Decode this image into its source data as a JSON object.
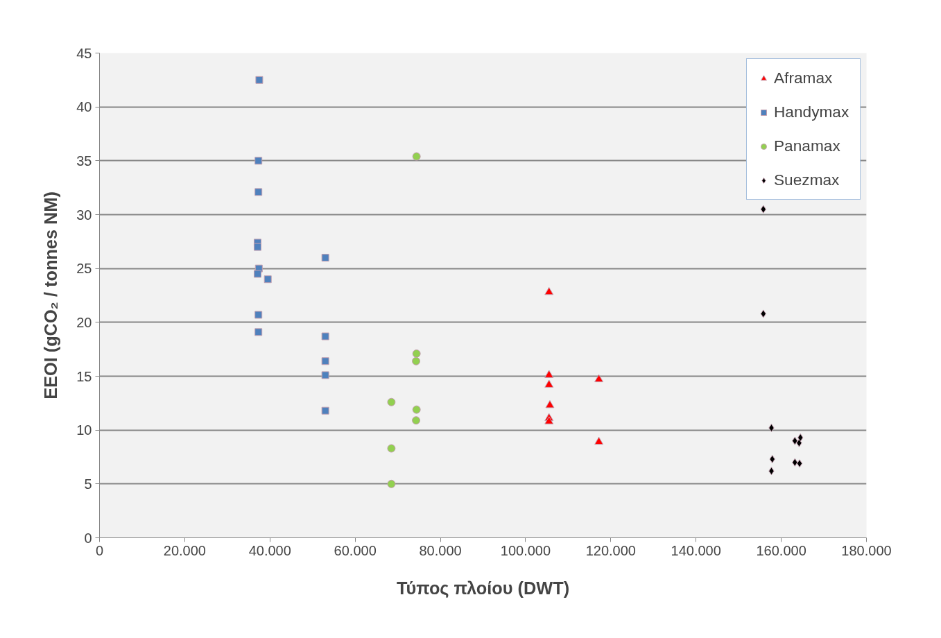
{
  "chart_data": {
    "type": "scatter",
    "xlabel": "Τύπος πλοίου (DWT)",
    "ylabel": "EEOI (gCO₂ / tonnes NM)",
    "xlim": [
      0,
      180000
    ],
    "ylim": [
      0,
      45
    ],
    "xticks": [
      0,
      {
        "value": 20000,
        "label": "20.000"
      },
      {
        "value": 40000,
        "label": "40.000"
      },
      {
        "value": 60000,
        "label": "60.000"
      },
      {
        "value": 80000,
        "label": "80.000"
      },
      {
        "value": 100000,
        "label": "100.000"
      },
      {
        "value": 120000,
        "label": "120.000"
      },
      {
        "value": 140000,
        "label": "140.000"
      },
      {
        "value": 160000,
        "label": "160.000"
      },
      {
        "value": 180000,
        "label": "180.000"
      }
    ],
    "yticks": [
      0,
      5,
      10,
      15,
      20,
      25,
      30,
      35,
      40,
      45
    ],
    "grid": "y",
    "legend": "top right",
    "series": [
      {
        "name": "Aframax",
        "color": "#ff0000",
        "marker": "triangle",
        "x": [
          105500,
          105500,
          105500,
          105700,
          105500,
          105500,
          117200,
          117200
        ],
        "values": [
          22.8,
          15.1,
          14.2,
          12.3,
          11.1,
          10.8,
          14.7,
          8.9
        ]
      },
      {
        "name": "Handymax",
        "color": "#4f81bd",
        "marker": "square",
        "x": [
          37500,
          37300,
          37300,
          37100,
          37100,
          37400,
          37100,
          39500,
          37300,
          37300,
          53000,
          53000,
          53000,
          53000,
          53000
        ],
        "values": [
          42.5,
          35.0,
          32.1,
          27.4,
          27.0,
          25.0,
          24.5,
          24.0,
          20.7,
          19.1,
          26.0,
          18.7,
          16.4,
          15.1,
          11.8
        ]
      },
      {
        "name": "Panamax",
        "color": "#92d050",
        "marker": "circle",
        "x": [
          74400,
          74400,
          74300,
          74400,
          74300,
          68500,
          68500,
          68500
        ],
        "values": [
          35.4,
          17.1,
          16.4,
          11.9,
          10.9,
          12.6,
          8.3,
          5.0
        ]
      },
      {
        "name": "Suezmax",
        "color": "#000000",
        "marker": "diamond",
        "x": [
          155800,
          155800,
          157700,
          163200,
          164500,
          164200,
          163200,
          164300,
          157900,
          157700
        ],
        "values": [
          30.5,
          20.8,
          10.2,
          9.0,
          9.3,
          8.8,
          7.0,
          6.9,
          7.3,
          6.2
        ]
      }
    ]
  }
}
